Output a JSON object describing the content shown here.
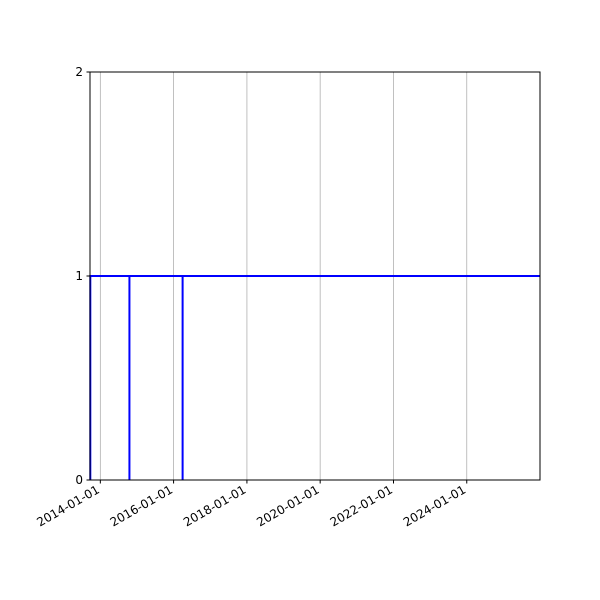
{
  "chart_data": {
    "type": "line",
    "title": "",
    "xlabel": "",
    "ylabel": "",
    "x_axis_type": "date",
    "xlim": [
      "2013-09-20",
      "2025-12-31"
    ],
    "ylim": [
      0,
      2
    ],
    "yticks": [
      0,
      1,
      2
    ],
    "ytick_labels": [
      "0",
      "1",
      "2"
    ],
    "xticks": [
      "2014-01-01",
      "2016-01-01",
      "2018-01-01",
      "2020-01-01",
      "2022-01-01",
      "2024-01-01"
    ],
    "xtick_labels": [
      "2014-01-01",
      "2016-01-01",
      "2018-01-01",
      "2020-01-01",
      "2022-01-01",
      "2024-01-01"
    ],
    "grid": "x",
    "series": [
      {
        "color": "#0000ff",
        "points": [
          [
            "2013-09-23",
            0
          ],
          [
            "2013-09-23",
            1
          ],
          [
            "2014-10-18",
            1
          ],
          [
            "2014-10-18",
            0
          ],
          [
            "2014-10-18",
            1
          ],
          [
            "2016-03-31",
            1
          ],
          [
            "2016-03-31",
            0
          ],
          [
            "2016-03-31",
            1
          ],
          [
            "2025-12-31",
            1
          ]
        ]
      }
    ]
  }
}
